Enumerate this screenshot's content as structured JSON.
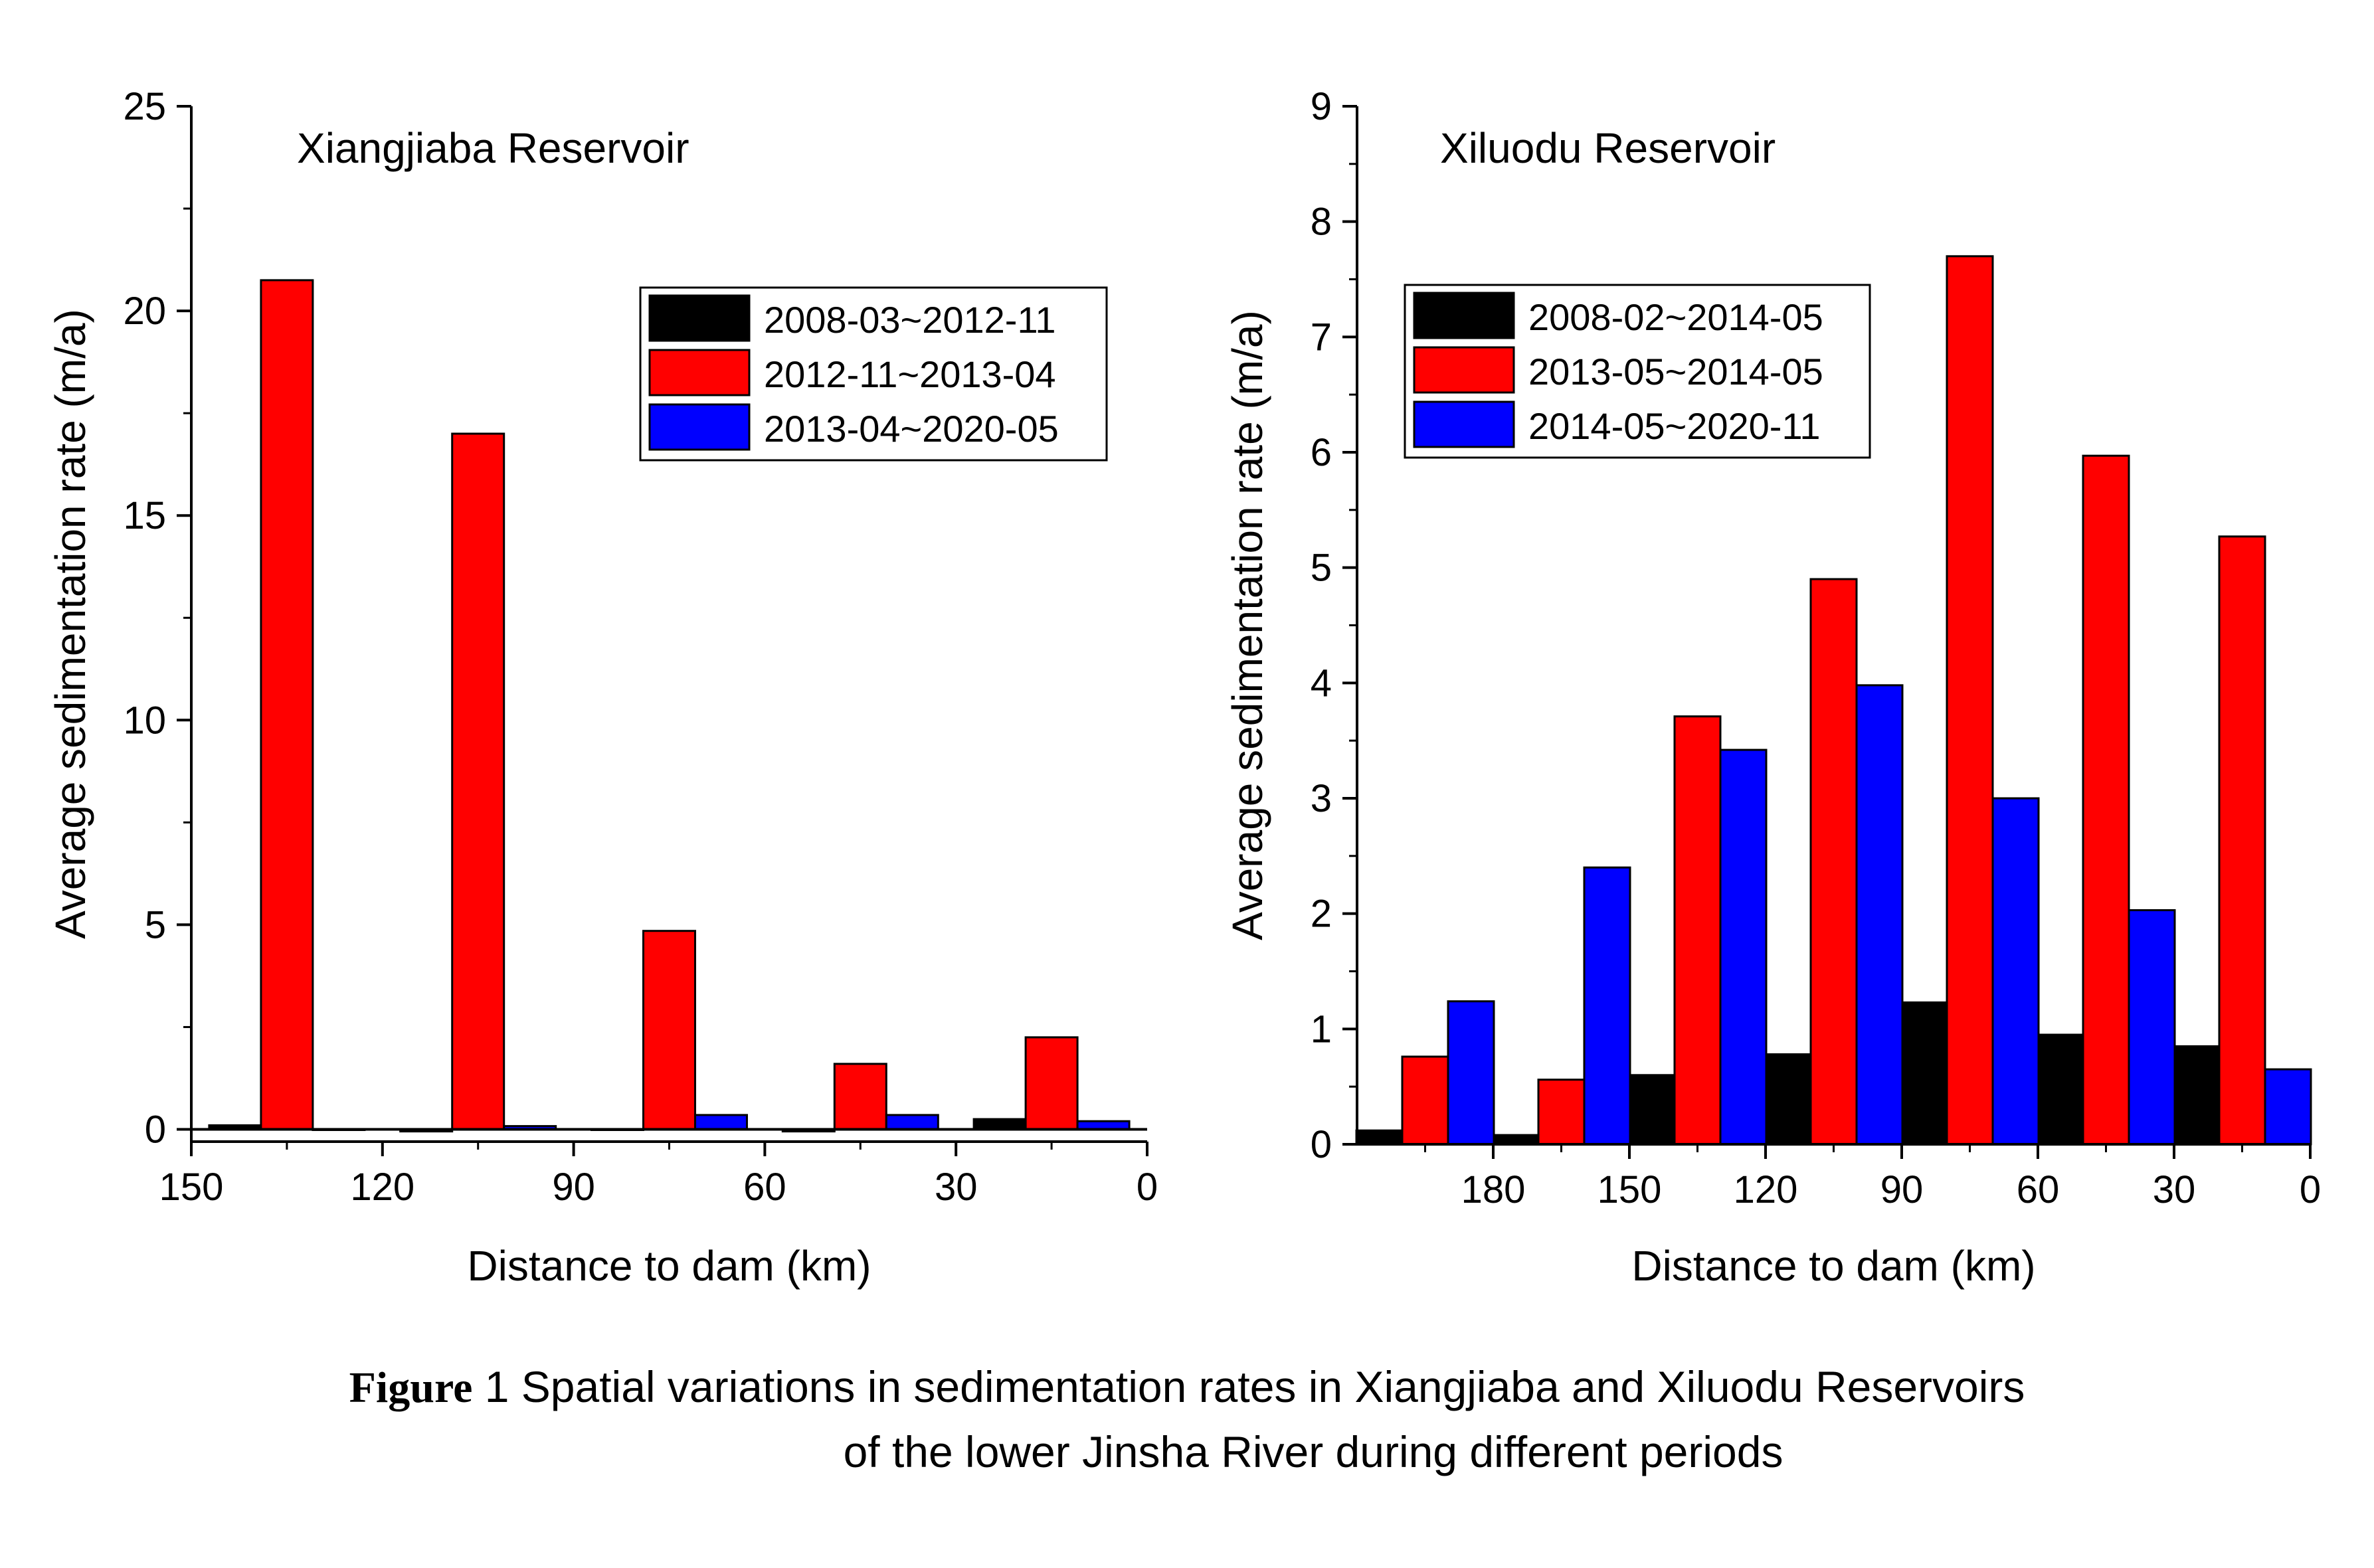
{
  "chart_data": [
    {
      "type": "bar",
      "title": "Xiangjiaba Reservoir",
      "xlabel": "Distance to dam (km)",
      "ylabel": "Average sedimentation rate (m/a)",
      "x_reversed": true,
      "xlim": [
        150,
        0
      ],
      "ylim": [
        -0.3,
        25
      ],
      "xticks": [
        150,
        120,
        90,
        60,
        30,
        0
      ],
      "yticks": [
        0,
        5,
        10,
        15,
        20,
        25
      ],
      "y_minor_step": 2.5,
      "group_centers": [
        135,
        105,
        75,
        45,
        15
      ],
      "series": [
        {
          "name": "2008-03~2012-11",
          "color": "#000000",
          "values": [
            0.1,
            -0.05,
            0.0,
            -0.05,
            0.25
          ]
        },
        {
          "name": "2012-11~2013-04",
          "color": "#ff0000",
          "values": [
            20.75,
            17.0,
            4.85,
            1.6,
            2.25
          ]
        },
        {
          "name": "2013-04~2020-05",
          "color": "#0000ff",
          "values": [
            0.0,
            0.08,
            0.35,
            0.35,
            0.2
          ]
        }
      ],
      "legend_position": "top-right"
    },
    {
      "type": "bar",
      "title": "Xiluodu Reservoir",
      "xlabel": "Distance to dam (km)",
      "ylabel": "Average sedimentation rate (m/a)",
      "x_reversed": true,
      "xlim": [
        210,
        0
      ],
      "ylim": [
        0,
        9
      ],
      "xticks": [
        180,
        150,
        120,
        90,
        60,
        30,
        0
      ],
      "yticks": [
        0,
        1,
        2,
        3,
        4,
        5,
        6,
        7,
        8,
        9
      ],
      "y_minor_step": 0.5,
      "group_centers": [
        195,
        165,
        135,
        105,
        75,
        45,
        15
      ],
      "series": [
        {
          "name": "2008-02~2014-05",
          "color": "#000000",
          "values": [
            0.12,
            0.08,
            0.6,
            0.78,
            1.23,
            0.95,
            0.85
          ]
        },
        {
          "name": "2013-05~2014-05",
          "color": "#ff0000",
          "values": [
            0.76,
            0.56,
            3.71,
            4.9,
            7.7,
            5.97,
            5.27
          ]
        },
        {
          "name": "2014-05~2020-11",
          "color": "#0000ff",
          "values": [
            1.24,
            2.4,
            3.42,
            3.98,
            3.0,
            2.03,
            0.65
          ]
        }
      ],
      "legend_position": "top-left"
    }
  ],
  "caption": {
    "label": "Figure",
    "line1": "1 Spatial variations in sedimentation rates in Xiangjiaba and Xiluodu Reservoirs",
    "line2": "of the lower Jinsha River during different periods"
  }
}
